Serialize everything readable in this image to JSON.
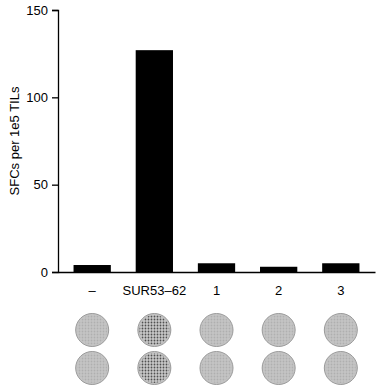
{
  "chart_data": {
    "type": "bar",
    "y_label": "SFCs per 1e5 TILs",
    "categories": [
      "–",
      "SUR53–62",
      "1",
      "2",
      "3"
    ],
    "values": [
      4,
      127,
      5,
      3,
      5
    ],
    "color": "#000000",
    "ylim": [
      0,
      150
    ],
    "yticks": [
      0,
      50,
      100,
      150
    ],
    "grid": false
  }
}
